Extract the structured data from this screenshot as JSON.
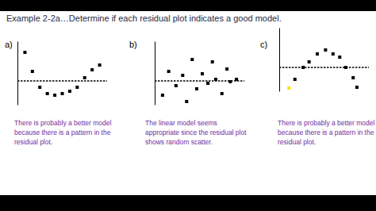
{
  "title": "Example 2-2a…Determine if each residual plot indicates a good model.",
  "chart_data": [
    {
      "type": "scatter",
      "title": "a)",
      "annotations": [
        "There is probably a better model because there is a pattern in the residual plot."
      ],
      "x": [
        1,
        2,
        3,
        4,
        5,
        6,
        7,
        8,
        9,
        10,
        11
      ],
      "y": [
        3.6,
        1.2,
        -0.8,
        -1.6,
        -1.8,
        -1.6,
        -1.3,
        -0.8,
        0.4,
        1.4,
        2.0
      ],
      "color": "#000000",
      "marker": "square",
      "xlim": [
        0,
        12
      ],
      "ylim": [
        -3,
        5
      ],
      "yticks": [
        0
      ],
      "grid": true,
      "tick_labels": false
    },
    {
      "type": "scatter",
      "title": "b)",
      "annotations": [
        "The linear model seems appropriate since the residual plot shows random scatter."
      ],
      "x": [
        1.4,
        2.5,
        3.8,
        5,
        5.7,
        6.7,
        7.5,
        8.5,
        9.5,
        10.3,
        10.9,
        12,
        12.9,
        13.5,
        14.6
      ],
      "y": [
        -1.8,
        1.2,
        -0.6,
        0.7,
        -2.6,
        2.7,
        -1.0,
        0.9,
        -0.3,
        2.4,
        0.2,
        -1.6,
        1.5,
        -0.1,
        0.2
      ],
      "color": "#000000",
      "marker": "square",
      "xlim": [
        0,
        16
      ],
      "ylim": [
        -3,
        5
      ],
      "yticks": [
        0
      ],
      "grid": true,
      "tick_labels": false
    },
    {
      "type": "scatter",
      "title": "c)",
      "annotations": [
        "There is probably a better model because there is a pattern in the residual plot."
      ],
      "x": [
        1.3,
        2.1,
        3.2,
        4,
        5.1,
        6.2,
        7.2,
        8.1,
        8.9,
        9.9,
        10.4
      ],
      "y": [
        -2.6,
        -1.5,
        0,
        0.7,
        1.7,
        2.2,
        1.7,
        1.3,
        0,
        -1.3,
        -2.5
      ],
      "colors": [
        "#f2e600",
        "#000000",
        "#000000",
        "#000000",
        "#000000",
        "#000000",
        "#000000",
        "#000000",
        "#000000",
        "#000000",
        "#000000"
      ],
      "marker": "square",
      "xlim": [
        0,
        12
      ],
      "ylim": [
        -3,
        5
      ],
      "yticks": [
        0
      ],
      "grid": true,
      "tick_labels": false
    }
  ]
}
